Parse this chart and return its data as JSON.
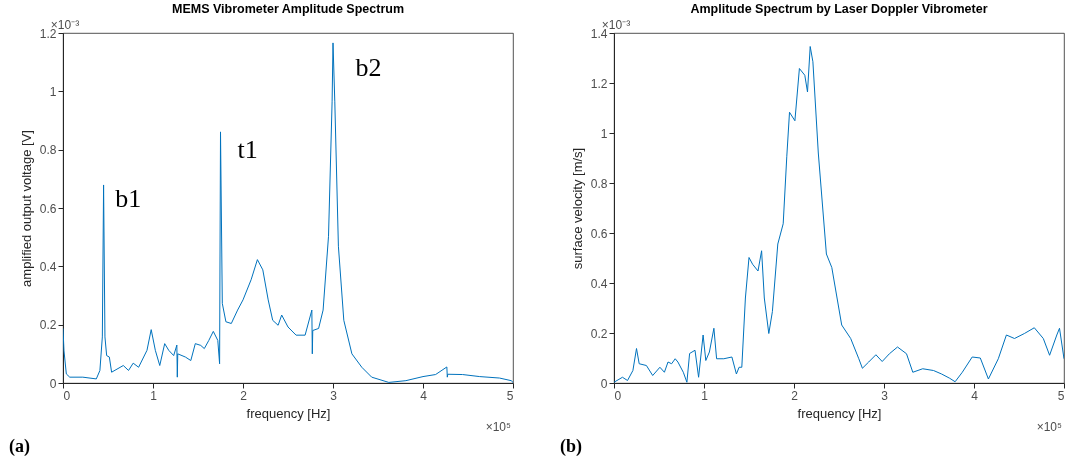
{
  "chart_data": [
    {
      "type": "line",
      "title": "MEMS Vibrometer Amplitude Spectrum",
      "xlabel": "frequency [Hz]",
      "ylabel": "amplified output voltage [V]",
      "x": [
        0,
        0.011,
        0.037,
        0.075,
        0.22,
        0.37,
        0.41,
        0.437,
        0.451,
        0.466,
        0.485,
        0.515,
        0.54,
        0.67,
        0.728,
        0.78,
        0.84,
        0.933,
        0.98,
        1.026,
        1.075,
        1.13,
        1.175,
        1.23,
        1.265,
        1.27,
        1.275,
        1.36,
        1.42,
        1.47,
        1.53,
        1.57,
        1.62,
        1.67,
        1.72,
        1.74,
        1.75,
        1.77,
        1.81,
        1.87,
        1.94,
        2.0,
        2.09,
        2.16,
        2.22,
        2.28,
        2.33,
        2.39,
        2.43,
        2.5,
        2.59,
        2.69,
        2.765,
        2.77,
        2.775,
        2.84,
        2.89,
        2.95,
        2.99,
        3.0,
        3.02,
        3.06,
        3.12,
        3.21,
        3.32,
        3.43,
        3.62,
        3.81,
        4.0,
        4.14,
        4.265,
        4.27,
        4.275,
        4.44,
        4.63,
        4.85,
        4.98,
        5
      ],
      "series": [
        {
          "color": "#0072bd",
          "values": [
            0.187,
            0.11,
            0.031,
            0.02,
            0.02,
            0.014,
            0.043,
            0.158,
            0.679,
            0.158,
            0.094,
            0.089,
            0.037,
            0.06,
            0.043,
            0.068,
            0.054,
            0.112,
            0.183,
            0.112,
            0.06,
            0.135,
            0.112,
            0.094,
            0.13,
            0.02,
            0.1,
            0.089,
            0.077,
            0.135,
            0.129,
            0.118,
            0.146,
            0.177,
            0.146,
            0.066,
            0.861,
            0.273,
            0.21,
            0.204,
            0.25,
            0.285,
            0.354,
            0.423,
            0.388,
            0.285,
            0.215,
            0.198,
            0.233,
            0.192,
            0.164,
            0.164,
            0.25,
            0.1,
            0.18,
            0.187,
            0.25,
            0.503,
            0.964,
            1.166,
            0.964,
            0.469,
            0.215,
            0.1,
            0.054,
            0.02,
            0.002,
            0.008,
            0.022,
            0.029,
            0.055,
            0.02,
            0.03,
            0.029,
            0.022,
            0.017,
            0.008,
            0.002
          ]
        }
      ],
      "xlim": [
        0,
        5
      ],
      "xticks": [
        0,
        1,
        2,
        3,
        4,
        5
      ],
      "ylim": [
        0,
        1.2
      ],
      "yticks": [
        0,
        0.2,
        0.4,
        0.6,
        0.8,
        1,
        1.2
      ],
      "grid": false,
      "annotations": [
        "×10⁻³",
        "×10⁵",
        "(a)",
        "b1",
        "t1",
        "b2"
      ]
    },
    {
      "type": "line",
      "title": "Amplitude Spectrum by Laser Doppler Vibrometer",
      "xlabel": "frequency [Hz]",
      "ylabel": "surface velocity [m/s]",
      "x": [
        0,
        0.094,
        0.15,
        0.21,
        0.25,
        0.28,
        0.36,
        0.43,
        0.51,
        0.56,
        0.6,
        0.64,
        0.68,
        0.71,
        0.77,
        0.81,
        0.84,
        0.9,
        0.94,
        0.99,
        1.02,
        1.06,
        1.11,
        1.14,
        1.22,
        1.31,
        1.36,
        1.39,
        1.42,
        1.46,
        1.5,
        1.54,
        1.6,
        1.64,
        1.67,
        1.72,
        1.76,
        1.82,
        1.88,
        1.92,
        1.95,
        2.01,
        2.06,
        2.12,
        2.15,
        2.18,
        2.21,
        2.27,
        2.36,
        2.42,
        2.53,
        2.63,
        2.72,
        2.76,
        2.83,
        2.91,
        2.98,
        3.06,
        3.15,
        3.25,
        3.32,
        3.43,
        3.55,
        3.64,
        3.73,
        3.79,
        3.87,
        3.98,
        4.07,
        4.16,
        4.27,
        4.36,
        4.45,
        4.56,
        4.67,
        4.77,
        4.84,
        4.92,
        4.95,
        5
      ],
      "series": [
        {
          "color": "#0072bd",
          "values": [
            0.003,
            0.023,
            0.01,
            0.05,
            0.138,
            0.077,
            0.07,
            0.03,
            0.063,
            0.043,
            0.084,
            0.077,
            0.097,
            0.084,
            0.043,
            0.003,
            0.118,
            0.131,
            0.023,
            0.192,
            0.09,
            0.124,
            0.219,
            0.097,
            0.097,
            0.104,
            0.036,
            0.063,
            0.063,
            0.34,
            0.502,
            0.475,
            0.448,
            0.529,
            0.34,
            0.198,
            0.286,
            0.556,
            0.637,
            0.907,
            1.083,
            1.049,
            1.258,
            1.231,
            1.164,
            1.346,
            1.285,
            0.92,
            0.516,
            0.462,
            0.232,
            0.178,
            0.097,
            0.059,
            0.084,
            0.113,
            0.086,
            0.117,
            0.144,
            0.117,
            0.043,
            0.057,
            0.05,
            0.036,
            0.019,
            0.005,
            0.043,
            0.104,
            0.1,
            0.016,
            0.097,
            0.192,
            0.178,
            0.198,
            0.221,
            0.178,
            0.111,
            0.192,
            0.219,
            0.097
          ]
        }
      ],
      "xlim": [
        0,
        5
      ],
      "xticks": [
        0,
        1,
        2,
        3,
        4,
        5
      ],
      "ylim": [
        0,
        1.4
      ],
      "yticks": [
        0,
        0.2,
        0.4,
        0.6,
        0.8,
        1,
        1.2,
        1.4
      ],
      "grid": false,
      "annotations": [
        "×10⁻³",
        "×10⁵",
        "(b)"
      ]
    }
  ]
}
